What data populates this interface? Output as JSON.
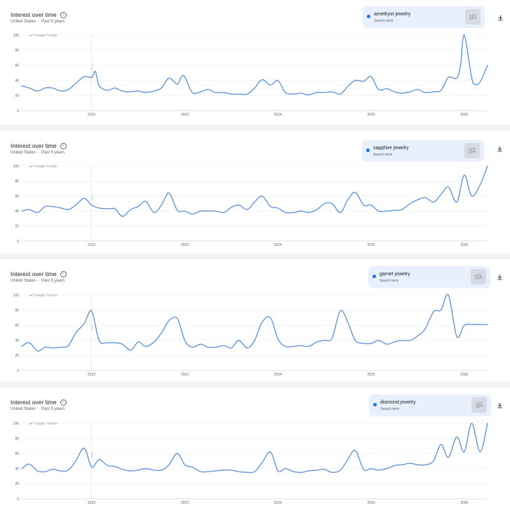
{
  "chart_data": [
    {
      "type": "line",
      "title": "Interest over time",
      "region": "United States",
      "period": "Past 5 years",
      "watermark": "Google Trends",
      "note": "Note",
      "term": "amethyst jewelry",
      "term_type": "Search term",
      "color": "#5b8fd6",
      "ylim": [
        0,
        100
      ],
      "yticks": [
        0,
        20,
        40,
        60,
        80,
        100
      ],
      "xlim": [
        2021.25,
        2026.25
      ],
      "xticks": [
        "2022",
        "2023",
        "2024",
        "2025",
        "2026"
      ],
      "note_x": 2022.0,
      "x": [
        2021.25,
        2021.33,
        2021.42,
        2021.5,
        2021.58,
        2021.67,
        2021.75,
        2021.83,
        2021.92,
        2022.0,
        2022.04,
        2022.08,
        2022.17,
        2022.25,
        2022.33,
        2022.42,
        2022.5,
        2022.58,
        2022.67,
        2022.75,
        2022.83,
        2022.92,
        2022.96,
        2023.0,
        2023.08,
        2023.17,
        2023.25,
        2023.33,
        2023.42,
        2023.5,
        2023.58,
        2023.67,
        2023.75,
        2023.83,
        2023.92,
        2024.0,
        2024.08,
        2024.17,
        2024.25,
        2024.33,
        2024.42,
        2024.5,
        2024.58,
        2024.67,
        2024.75,
        2024.83,
        2024.92,
        2025.0,
        2025.08,
        2025.17,
        2025.25,
        2025.33,
        2025.42,
        2025.5,
        2025.58,
        2025.67,
        2025.75,
        2025.83,
        2025.92,
        2025.96,
        2026.0,
        2026.08,
        2026.12,
        2026.17,
        2026.25
      ],
      "values": [
        33,
        30,
        26,
        30,
        30,
        26,
        28,
        36,
        45,
        44,
        52,
        33,
        27,
        30,
        26,
        25,
        26,
        24,
        26,
        30,
        43,
        35,
        44,
        45,
        24,
        25,
        28,
        24,
        24,
        22,
        22,
        22,
        30,
        41,
        34,
        40,
        24,
        22,
        23,
        21,
        24,
        24,
        25,
        22,
        32,
        40,
        39,
        45,
        28,
        29,
        25,
        23,
        25,
        28,
        24,
        25,
        27,
        44,
        43,
        60,
        100,
        43,
        35,
        38,
        60
      ]
    },
    {
      "type": "line",
      "title": "Interest over time",
      "region": "United States",
      "period": "Past 5 years",
      "watermark": "Google Trends",
      "note": "Note",
      "term": "sapphire jewelry",
      "term_type": "Search term",
      "color": "#5b8fd6",
      "ylim": [
        0,
        100
      ],
      "yticks": [
        0,
        20,
        40,
        60,
        80,
        100
      ],
      "xlim": [
        2021.25,
        2026.25
      ],
      "xticks": [
        "2022",
        "2023",
        "2024",
        "2025",
        "2026"
      ],
      "note_x": 2022.0,
      "x": [
        2021.25,
        2021.33,
        2021.42,
        2021.5,
        2021.58,
        2021.67,
        2021.75,
        2021.83,
        2021.92,
        2022.0,
        2022.08,
        2022.17,
        2022.25,
        2022.33,
        2022.42,
        2022.5,
        2022.58,
        2022.67,
        2022.75,
        2022.83,
        2022.92,
        2023.0,
        2023.08,
        2023.17,
        2023.25,
        2023.33,
        2023.42,
        2023.5,
        2023.58,
        2023.67,
        2023.75,
        2023.83,
        2023.92,
        2024.0,
        2024.08,
        2024.17,
        2024.25,
        2024.33,
        2024.42,
        2024.5,
        2024.58,
        2024.67,
        2024.75,
        2024.83,
        2024.92,
        2025.0,
        2025.08,
        2025.17,
        2025.25,
        2025.33,
        2025.42,
        2025.5,
        2025.58,
        2025.67,
        2025.75,
        2025.83,
        2025.92,
        2026.0,
        2026.08,
        2026.17,
        2026.25
      ],
      "values": [
        40,
        42,
        38,
        46,
        46,
        44,
        42,
        48,
        57,
        48,
        44,
        43,
        43,
        33,
        42,
        46,
        53,
        38,
        48,
        64,
        41,
        40,
        36,
        40,
        40,
        40,
        38,
        45,
        48,
        42,
        52,
        60,
        46,
        44,
        38,
        38,
        40,
        38,
        42,
        50,
        50,
        38,
        55,
        65,
        48,
        48,
        40,
        40,
        41,
        42,
        50,
        55,
        58,
        52,
        62,
        72,
        52,
        88,
        60,
        75,
        100
      ]
    },
    {
      "type": "line",
      "title": "Interest over time",
      "region": "United States",
      "period": "Past 5 years",
      "watermark": "Google Trends",
      "note": "Note",
      "term": "garnet jewelry",
      "term_type": "Search term",
      "color": "#5b8fd6",
      "ylim": [
        0,
        100
      ],
      "yticks": [
        0,
        20,
        40,
        60,
        80,
        100
      ],
      "xlim": [
        2021.25,
        2026.25
      ],
      "xticks": [
        "2022",
        "2023",
        "2024",
        "2025",
        "2026"
      ],
      "note_x": 2022.0,
      "x": [
        2021.25,
        2021.33,
        2021.42,
        2021.5,
        2021.58,
        2021.67,
        2021.75,
        2021.83,
        2021.92,
        2022.0,
        2022.08,
        2022.17,
        2022.25,
        2022.33,
        2022.42,
        2022.5,
        2022.58,
        2022.67,
        2022.75,
        2022.83,
        2022.92,
        2023.0,
        2023.08,
        2023.17,
        2023.25,
        2023.33,
        2023.42,
        2023.5,
        2023.58,
        2023.67,
        2023.75,
        2023.83,
        2023.92,
        2024.0,
        2024.08,
        2024.17,
        2024.25,
        2024.33,
        2024.42,
        2024.5,
        2024.58,
        2024.67,
        2024.75,
        2024.83,
        2024.92,
        2025.0,
        2025.08,
        2025.17,
        2025.25,
        2025.33,
        2025.42,
        2025.5,
        2025.58,
        2025.67,
        2025.75,
        2025.83,
        2025.92,
        2026.0,
        2026.08,
        2026.17,
        2026.25
      ],
      "values": [
        32,
        37,
        26,
        31,
        30,
        31,
        33,
        50,
        62,
        79,
        40,
        37,
        37,
        35,
        27,
        38,
        32,
        38,
        50,
        66,
        69,
        40,
        31,
        35,
        31,
        31,
        33,
        30,
        40,
        30,
        40,
        64,
        70,
        42,
        32,
        32,
        33,
        32,
        38,
        40,
        43,
        79,
        64,
        40,
        36,
        36,
        40,
        35,
        38,
        40,
        40,
        46,
        55,
        78,
        80,
        100,
        45,
        60,
        61,
        61,
        61
      ]
    },
    {
      "type": "line",
      "title": "Interest over time",
      "region": "United States",
      "period": "Past 5 years",
      "watermark": "Google Trends",
      "note": "Note",
      "term": "diamond jewelry",
      "term_type": "Search term",
      "color": "#5b8fd6",
      "ylim": [
        0,
        100
      ],
      "yticks": [
        0,
        20,
        40,
        60,
        80,
        100
      ],
      "xlim": [
        2021.25,
        2026.25
      ],
      "xticks": [
        "2022",
        "2023",
        "2024",
        "2025",
        "2026"
      ],
      "note_x": 2022.0,
      "x": [
        2021.25,
        2021.33,
        2021.42,
        2021.5,
        2021.58,
        2021.67,
        2021.75,
        2021.83,
        2021.92,
        2022.0,
        2022.08,
        2022.17,
        2022.25,
        2022.33,
        2022.42,
        2022.5,
        2022.58,
        2022.67,
        2022.75,
        2022.83,
        2022.92,
        2023.0,
        2023.08,
        2023.17,
        2023.25,
        2023.33,
        2023.42,
        2023.5,
        2023.58,
        2023.67,
        2023.75,
        2023.83,
        2023.92,
        2024.0,
        2024.08,
        2024.17,
        2024.25,
        2024.33,
        2024.42,
        2024.5,
        2024.58,
        2024.67,
        2024.75,
        2024.83,
        2024.92,
        2025.0,
        2025.08,
        2025.17,
        2025.25,
        2025.33,
        2025.42,
        2025.5,
        2025.58,
        2025.67,
        2025.75,
        2025.83,
        2025.92,
        2026.0,
        2026.08,
        2026.17,
        2026.25
      ],
      "values": [
        40,
        46,
        37,
        36,
        39,
        37,
        38,
        50,
        67,
        42,
        52,
        44,
        43,
        39,
        37,
        38,
        40,
        38,
        38,
        45,
        60,
        45,
        42,
        36,
        36,
        37,
        38,
        38,
        36,
        35,
        36,
        48,
        62,
        37,
        40,
        36,
        35,
        37,
        38,
        39,
        35,
        38,
        52,
        64,
        39,
        40,
        38,
        40,
        44,
        45,
        47,
        45,
        45,
        50,
        72,
        55,
        82,
        62,
        100,
        62,
        100
      ]
    }
  ]
}
